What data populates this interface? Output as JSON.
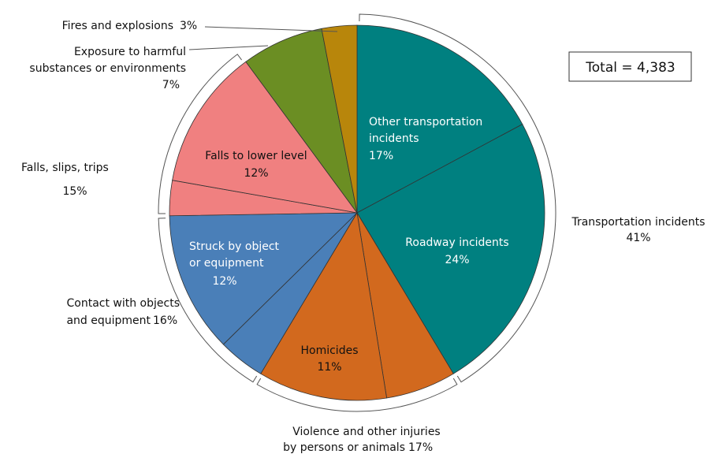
{
  "chart_data": {
    "type": "pie",
    "annotation": "Total = 4,383",
    "slices": {
      "labels": [
        [
          "Other transportation",
          "incidents"
        ],
        [
          "Roadway incidents"
        ],
        null,
        [
          "Homicides"
        ],
        null,
        [
          "Struck by object",
          "or equipment"
        ],
        null,
        [
          "Falls to lower level"
        ],
        null,
        null
      ],
      "values": [
        17,
        24,
        6,
        11,
        4,
        12,
        3,
        12,
        7,
        3
      ],
      "value_labels": [
        "17%",
        "24%",
        null,
        "11%",
        null,
        "12%",
        null,
        "12%",
        null,
        null
      ],
      "colors": [
        "#008080",
        "#008080",
        "#d2691e",
        "#d2691e",
        "#4a7fb8",
        "#4a7fb8",
        "#f08080",
        "#f08080",
        "#6b8e23",
        "#b8860b"
      ]
    },
    "groups": {
      "labels": [
        [
          "Transportation incidents"
        ],
        [
          "Violence and other injuries",
          "by persons or animals"
        ],
        [
          "Contact with objects",
          "and equipment"
        ],
        [
          "Falls, slips, trips"
        ],
        [
          "Exposure to harmful",
          "substances or environments"
        ],
        [
          "Fires and explosions"
        ]
      ],
      "values": [
        41,
        17,
        16,
        15,
        7,
        3
      ],
      "value_labels": [
        "41%",
        "17%",
        "16%",
        "15%",
        "7%",
        "3%"
      ]
    }
  }
}
